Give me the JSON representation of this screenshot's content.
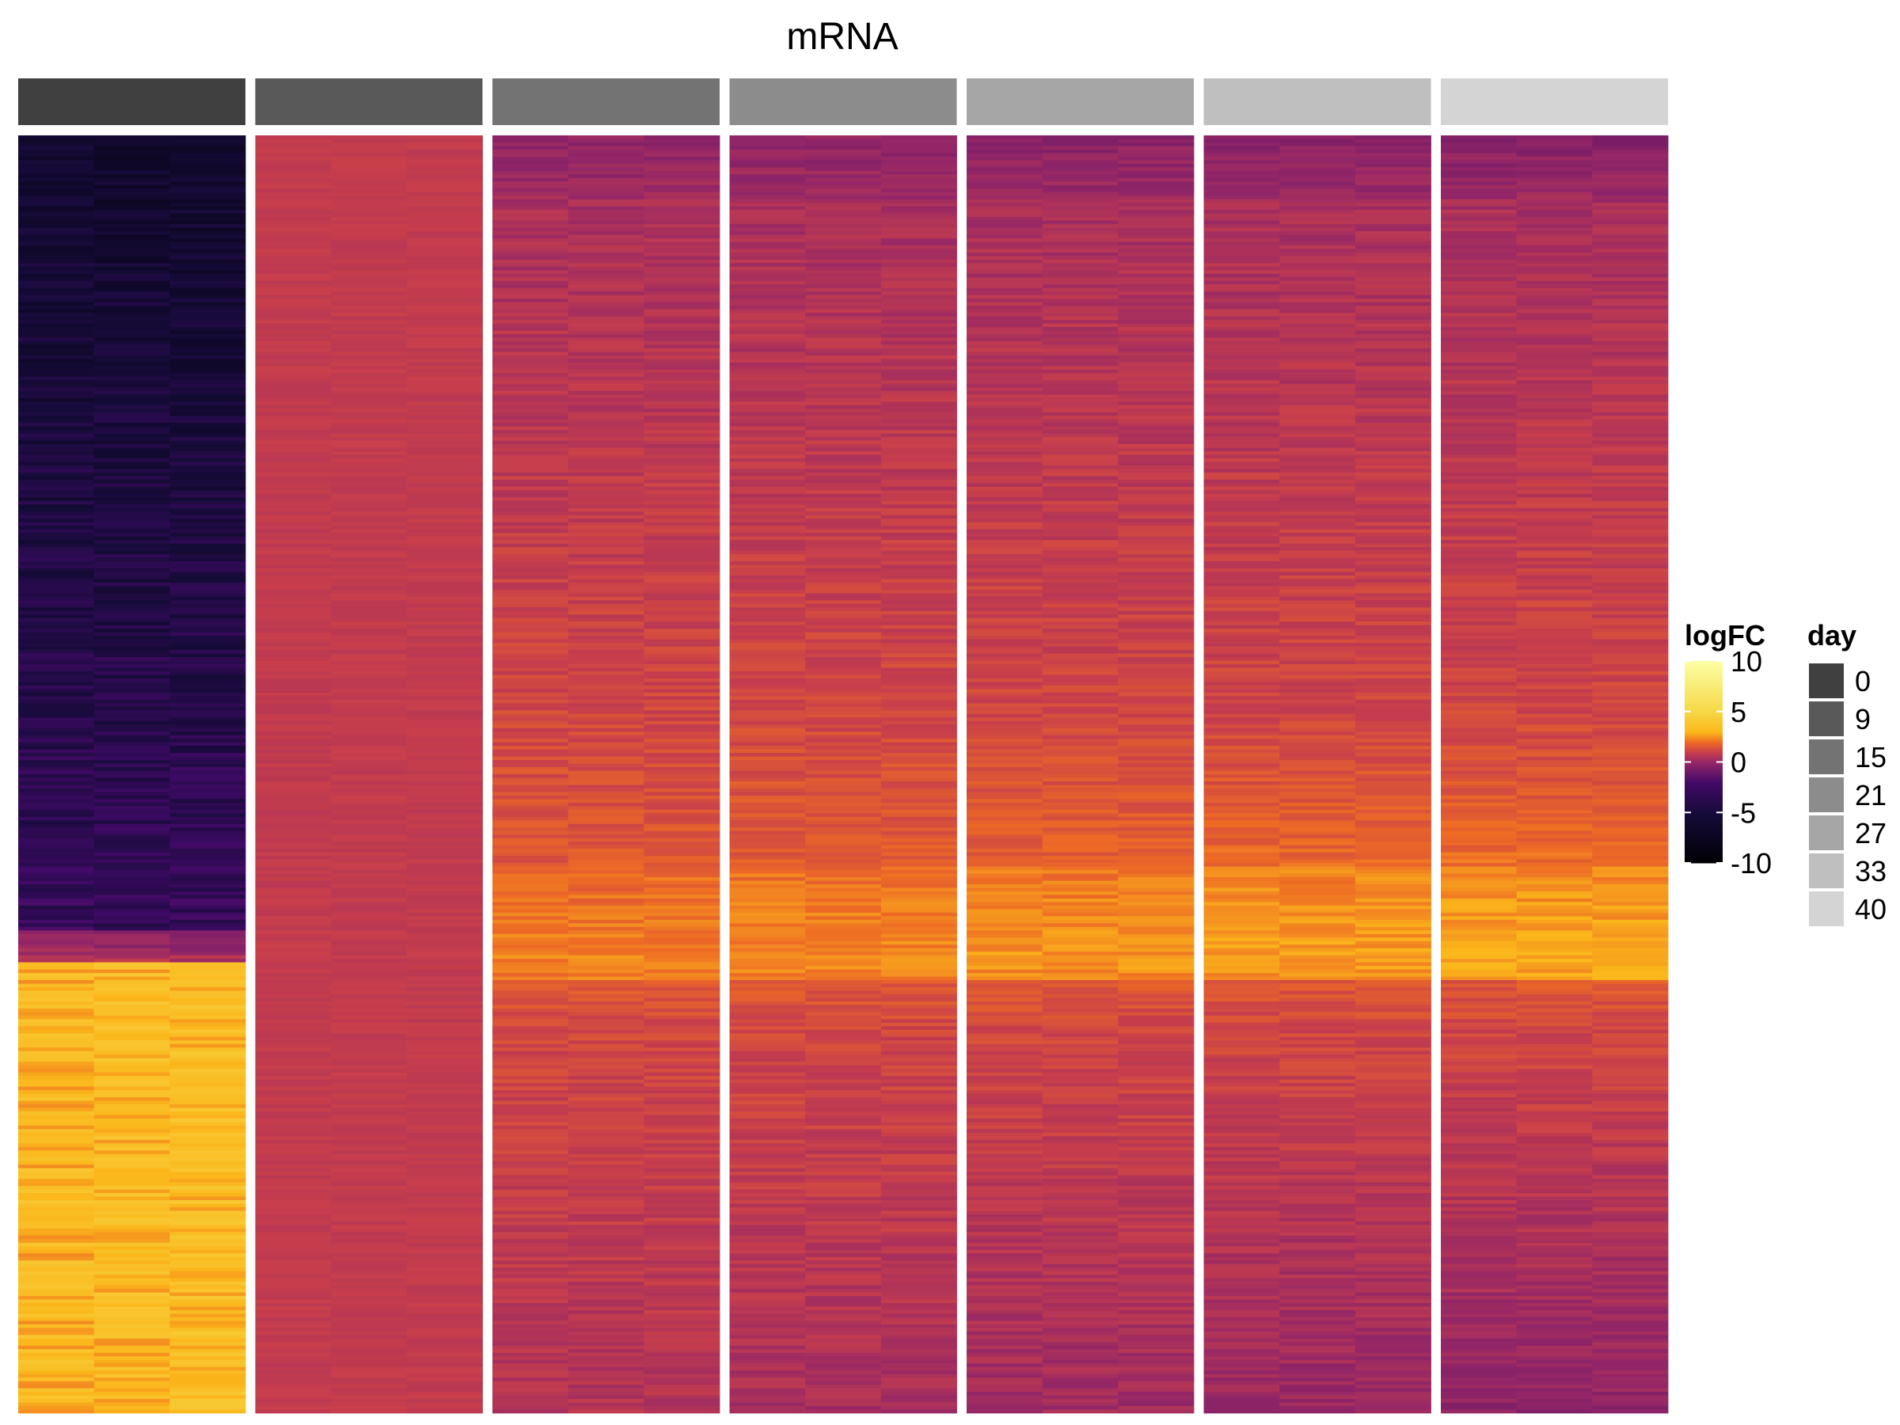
{
  "chart_data": {
    "type": "heatmap",
    "title": "mRNA",
    "columns": [
      {
        "day": "0",
        "color": "#404040",
        "profile": "d0"
      },
      {
        "day": "9",
        "color": "#595959",
        "profile": "d9"
      },
      {
        "day": "15",
        "color": "#737373",
        "profile": "late"
      },
      {
        "day": "21",
        "color": "#8c8c8c",
        "profile": "late"
      },
      {
        "day": "27",
        "color": "#a6a6a6",
        "profile": "late"
      },
      {
        "day": "33",
        "color": "#bfbfbf",
        "profile": "late"
      },
      {
        "day": "40",
        "color": "#d4d4d4",
        "profile": "late"
      }
    ],
    "replicates_per_column": 3,
    "value_range": [
      -10,
      10
    ],
    "color_scale": {
      "name": "logFC",
      "stops": [
        {
          "value": -10,
          "color": "#000004"
        },
        {
          "value": -5,
          "color": "#160b39"
        },
        {
          "value": -2,
          "color": "#420a68"
        },
        {
          "value": 0,
          "color": "#932667"
        },
        {
          "value": 1,
          "color": "#c73e4c"
        },
        {
          "value": 2,
          "color": "#ed6925"
        },
        {
          "value": 3,
          "color": "#fbb61a"
        },
        {
          "value": 5,
          "color": "#f6d746"
        },
        {
          "value": 10,
          "color": "#fcffa4"
        }
      ],
      "ticks": [
        "10",
        "5",
        "0",
        "-5",
        "-10"
      ],
      "tick_values": [
        10,
        5,
        0,
        -5,
        -10
      ]
    },
    "annotation_legend": {
      "name": "day",
      "labels": [
        "0",
        "9",
        "15",
        "21",
        "27",
        "33",
        "40"
      ],
      "colors": [
        "#404040",
        "#595959",
        "#737373",
        "#8c8c8c",
        "#a6a6a6",
        "#bfbfbf",
        "#d4d4d4"
      ]
    },
    "legend_placement": "right"
  }
}
